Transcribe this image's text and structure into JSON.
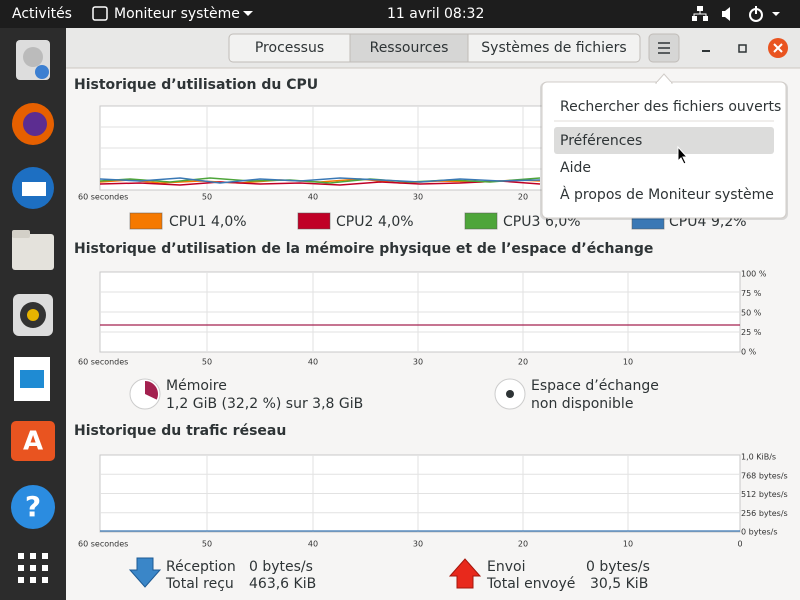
{
  "top_bar": {
    "activities": "Activités",
    "app_name": "Moniteur système",
    "date": "11 avril",
    "time": "08:32"
  },
  "tabs": {
    "items": [
      "Processus",
      "Ressources",
      "Systèmes de fichiers"
    ],
    "active": 1
  },
  "menu": {
    "items": [
      "Rechercher des fichiers ouverts",
      "Préférences",
      "Aide",
      "À propos de Moniteur système"
    ],
    "highlighted": 1
  },
  "cpu": {
    "title": "Historique d’utilisation du CPU",
    "x_ticks": [
      "60 secondes",
      "50",
      "40",
      "30",
      "20"
    ],
    "legend": [
      {
        "name": "CPU1",
        "value": "4,0%",
        "color": "#f57900"
      },
      {
        "name": "CPU2",
        "value": "4,0%",
        "color": "#c00026"
      },
      {
        "name": "CPU3",
        "value": "6,0%",
        "color": "#4ea53a"
      },
      {
        "name": "CPU4",
        "value": "9,2%",
        "color": "#3a78b5"
      }
    ]
  },
  "memory": {
    "title": "Historique d’utilisation de la mémoire physique et de l’espace d’échange",
    "x_ticks": [
      "60 secondes",
      "50",
      "40",
      "30",
      "20",
      "10"
    ],
    "y_ticks": [
      "100 %",
      "75 %",
      "50 %",
      "25 %",
      "0 %"
    ],
    "ram": {
      "label": "Mémoire",
      "detail": "1,2 GiB (32,2 %) sur 3,8 GiB",
      "percent": 32.2,
      "color": "#a3214f"
    },
    "swap": {
      "label": "Espace d’échange",
      "detail": "non disponible"
    }
  },
  "network": {
    "title": "Historique du trafic réseau",
    "x_ticks": [
      "60 secondes",
      "50",
      "40",
      "30",
      "20",
      "10",
      "0"
    ],
    "y_ticks": [
      "1,0 KiB/s",
      "768 bytes/s",
      "512 bytes/s",
      "256 bytes/s",
      "0 bytes/s"
    ],
    "receive": {
      "label": "Réception",
      "rate": "0 bytes/s",
      "total_label": "Total reçu",
      "total": "463,6 KiB"
    },
    "send": {
      "label": "Envoi",
      "rate": "0 bytes/s",
      "total_label": "Total envoyé",
      "total": "30,5 KiB"
    }
  }
}
